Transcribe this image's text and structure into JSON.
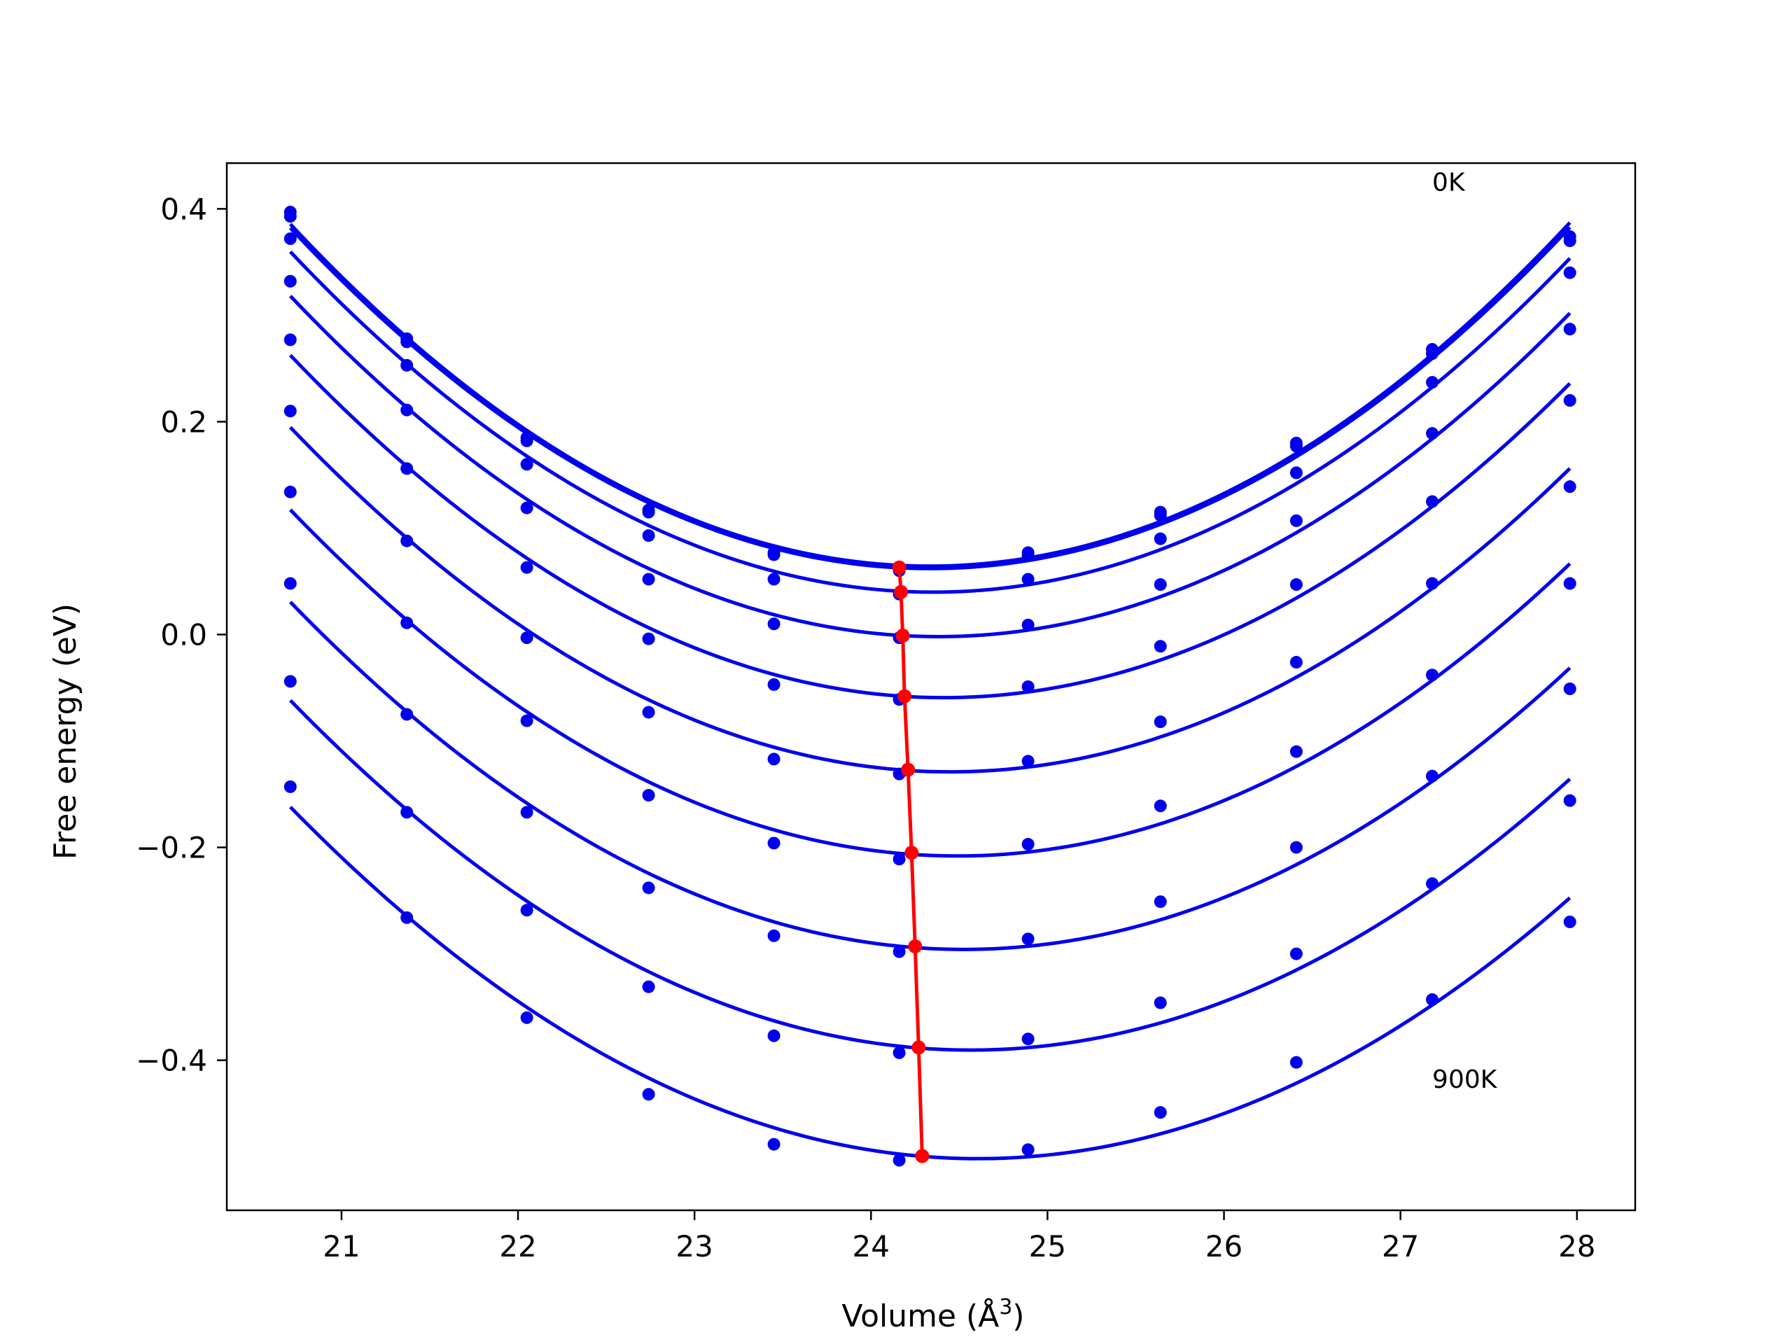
{
  "chart_data": {
    "type": "line",
    "xlabel": "Volume (Å",
    "xlabel_sup": "3",
    "xlabel_close": ")",
    "ylabel": "Free energy (eV)",
    "xlim": [
      20.35,
      28.33
    ],
    "ylim": [
      -0.541,
      0.443
    ],
    "xticks": [
      21,
      22,
      23,
      24,
      25,
      26,
      27,
      28
    ],
    "yticks": [
      0.4,
      0.2,
      0.0,
      -0.2,
      -0.4
    ],
    "ytick_labels": [
      "0.4",
      "0.2",
      "0.0",
      "−0.2",
      "−0.4"
    ],
    "grid": false,
    "annotations": [
      {
        "text": "0K",
        "x": 27.18,
        "y": 0.425
      },
      {
        "text": "900K",
        "x": 27.18,
        "y": -0.418
      }
    ],
    "colors": {
      "series": "#0000ee",
      "minimum": "#ff0000"
    },
    "x": [
      20.71,
      21.37,
      22.05,
      22.74,
      23.45,
      24.16,
      24.89,
      25.64,
      26.41,
      27.18,
      27.96
    ],
    "series": [
      {
        "values": [
          0.397,
          0.278,
          0.185,
          0.117,
          0.077,
          0.062,
          0.077,
          0.115,
          0.18,
          0.268,
          0.374
        ]
      },
      {
        "values": [
          0.393,
          0.275,
          0.182,
          0.115,
          0.075,
          0.06,
          0.074,
          0.112,
          0.177,
          0.264,
          0.37
        ]
      },
      {
        "values": [
          0.372,
          0.253,
          0.16,
          0.093,
          0.052,
          0.038,
          0.052,
          0.09,
          0.152,
          0.237,
          0.34
        ]
      },
      {
        "values": [
          0.332,
          0.211,
          0.119,
          0.052,
          0.01,
          -0.003,
          0.009,
          0.047,
          0.107,
          0.189,
          0.287
        ]
      },
      {
        "values": [
          0.277,
          0.156,
          0.063,
          -0.004,
          -0.047,
          -0.061,
          -0.049,
          -0.011,
          0.047,
          0.125,
          0.22
        ]
      },
      {
        "values": [
          0.21,
          0.088,
          -0.003,
          -0.073,
          -0.117,
          -0.131,
          -0.119,
          -0.082,
          -0.026,
          0.048,
          0.139
        ]
      },
      {
        "values": [
          0.134,
          0.011,
          -0.081,
          -0.151,
          -0.196,
          -0.211,
          -0.197,
          -0.161,
          -0.11,
          -0.038,
          0.048
        ]
      },
      {
        "values": [
          0.048,
          -0.075,
          -0.167,
          -0.238,
          -0.283,
          -0.298,
          -0.286,
          -0.251,
          -0.2,
          -0.133,
          -0.051
        ]
      },
      {
        "values": [
          -0.044,
          -0.167,
          -0.259,
          -0.331,
          -0.377,
          -0.393,
          -0.38,
          -0.346,
          -0.3,
          -0.234,
          -0.156
        ]
      },
      {
        "values": [
          -0.143,
          -0.266,
          -0.36,
          -0.432,
          -0.479,
          -0.494,
          -0.484,
          -0.449,
          -0.402,
          -0.343,
          -0.27
        ]
      }
    ],
    "minimum_line": {
      "x": [
        24.16,
        24.17,
        24.18,
        24.19,
        24.21,
        24.23,
        24.25,
        24.27,
        24.29
      ],
      "y": [
        0.063,
        0.04,
        -0.001,
        -0.058,
        -0.127,
        -0.205,
        -0.293,
        -0.388,
        -0.49
      ]
    }
  }
}
